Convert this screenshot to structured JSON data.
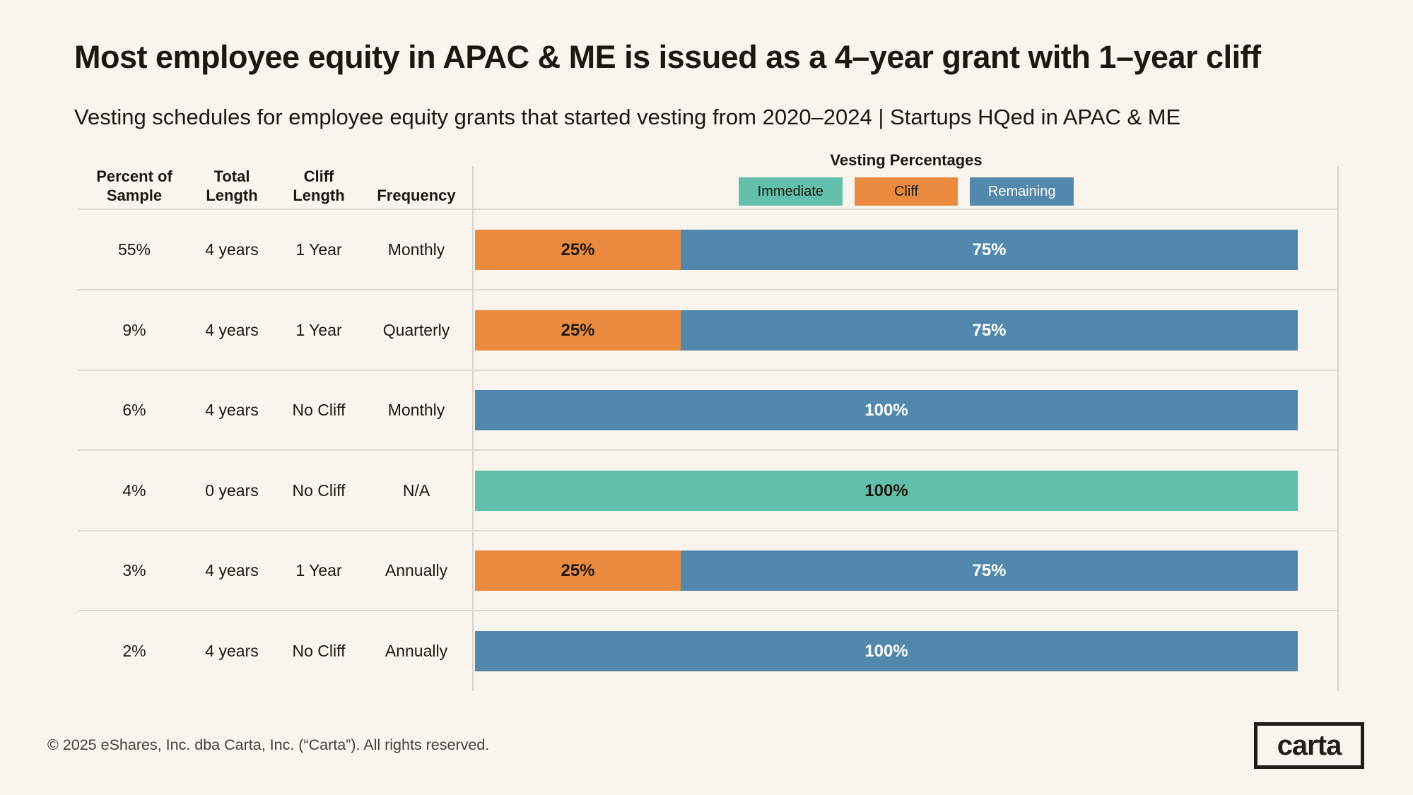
{
  "header": {
    "title": "Most employee equity in APAC & ME is issued as a 4–year grant with 1–year cliff",
    "subtitle": "Vesting schedules for employee equity grants that started vesting from 2020–2024 | Startups HQed in APAC & ME"
  },
  "table_headers": [
    {
      "line1": "Percent of",
      "line2": "Sample"
    },
    {
      "line1": "Total",
      "line2": "Length"
    },
    {
      "line1": "Cliff",
      "line2": "Length"
    },
    {
      "line1": "",
      "line2": "Frequency"
    }
  ],
  "legend": {
    "title": "Vesting Percentages",
    "items": [
      {
        "key": "immediate",
        "label": "Immediate"
      },
      {
        "key": "cliff",
        "label": "Cliff"
      },
      {
        "key": "remaining",
        "label": "Remaining"
      }
    ]
  },
  "rows": [
    {
      "percent": "55%",
      "total": "4 years",
      "cliff": "1 Year",
      "frequency": "Monthly",
      "segments": [
        {
          "key": "cliff",
          "value": 25,
          "label": "25%"
        },
        {
          "key": "remaining",
          "value": 75,
          "label": "75%"
        }
      ]
    },
    {
      "percent": "9%",
      "total": "4 years",
      "cliff": "1 Year",
      "frequency": "Quarterly",
      "segments": [
        {
          "key": "cliff",
          "value": 25,
          "label": "25%"
        },
        {
          "key": "remaining",
          "value": 75,
          "label": "75%"
        }
      ]
    },
    {
      "percent": "6%",
      "total": "4 years",
      "cliff": "No Cliff",
      "frequency": "Monthly",
      "segments": [
        {
          "key": "remaining",
          "value": 100,
          "label": "100%"
        }
      ]
    },
    {
      "percent": "4%",
      "total": "0 years",
      "cliff": "No Cliff",
      "frequency": "N/A",
      "segments": [
        {
          "key": "immediate",
          "value": 100,
          "label": "100%"
        }
      ]
    },
    {
      "percent": "3%",
      "total": "4 years",
      "cliff": "1 Year",
      "frequency": "Annually",
      "segments": [
        {
          "key": "cliff",
          "value": 25,
          "label": "25%"
        },
        {
          "key": "remaining",
          "value": 75,
          "label": "75%"
        }
      ]
    },
    {
      "percent": "2%",
      "total": "4 years",
      "cliff": "No Cliff",
      "frequency": "Annually",
      "segments": [
        {
          "key": "remaining",
          "value": 100,
          "label": "100%"
        }
      ]
    }
  ],
  "colors": {
    "background": "#F9F5EE",
    "text": "#1B1813",
    "line": "#DEDBD4",
    "immediate": "#62BFAA",
    "cliff": "#E98A3E",
    "remaining": "#5388AD",
    "segment_label": {
      "immediate": "#1B1813",
      "cliff": "#1B1813",
      "remaining": "#FFFFFF"
    }
  },
  "footer": {
    "copyright": "© 2025 eShares, Inc. dba Carta, Inc. (“Carta”). All rights reserved.",
    "logo_text": "carta"
  },
  "chart_data": {
    "type": "bar",
    "orientation": "horizontal",
    "stacked": true,
    "title": "Most employee equity in APAC & ME is issued as a 4–year grant with 1–year cliff",
    "subtitle": "Vesting schedules for employee equity grants that started vesting from 2020–2024 | Startups HQed in APAC & ME",
    "legend_title": "Vesting Percentages",
    "legend_position": "top",
    "grid": false,
    "xlim": [
      0,
      100
    ],
    "table_columns": [
      "Percent of Sample",
      "Total Length",
      "Cliff Length",
      "Frequency"
    ],
    "categories": [
      {
        "percent_of_sample": "55%",
        "total_length": "4 years",
        "cliff_length": "1 Year",
        "frequency": "Monthly"
      },
      {
        "percent_of_sample": "9%",
        "total_length": "4 years",
        "cliff_length": "1 Year",
        "frequency": "Quarterly"
      },
      {
        "percent_of_sample": "6%",
        "total_length": "4 years",
        "cliff_length": "No Cliff",
        "frequency": "Monthly"
      },
      {
        "percent_of_sample": "4%",
        "total_length": "0 years",
        "cliff_length": "No Cliff",
        "frequency": "N/A"
      },
      {
        "percent_of_sample": "3%",
        "total_length": "4 years",
        "cliff_length": "1 Year",
        "frequency": "Annually"
      },
      {
        "percent_of_sample": "2%",
        "total_length": "4 years",
        "cliff_length": "No Cliff",
        "frequency": "Annually"
      }
    ],
    "series": [
      {
        "name": "Immediate",
        "color": "#62BFAA",
        "values": [
          0,
          0,
          0,
          100,
          0,
          0
        ]
      },
      {
        "name": "Cliff",
        "color": "#E98A3E",
        "values": [
          25,
          25,
          0,
          0,
          25,
          0
        ]
      },
      {
        "name": "Remaining",
        "color": "#5388AD",
        "values": [
          75,
          75,
          100,
          0,
          75,
          100
        ]
      }
    ],
    "data_labels": [
      "25% / 75%",
      "25% / 75%",
      "100%",
      "100%",
      "25% / 75%",
      "100%"
    ]
  }
}
